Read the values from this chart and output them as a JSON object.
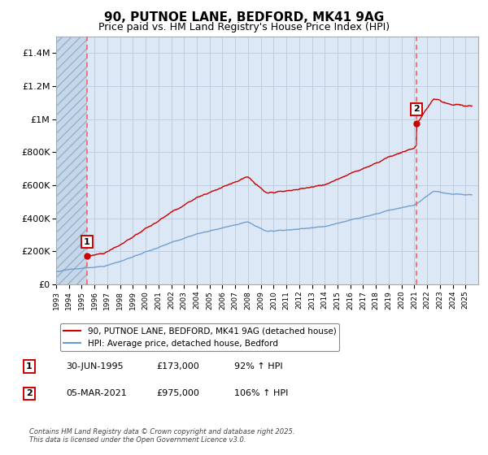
{
  "title": "90, PUTNOE LANE, BEDFORD, MK41 9AG",
  "subtitle": "Price paid vs. HM Land Registry's House Price Index (HPI)",
  "ylim": [
    0,
    1500000
  ],
  "xlim_start": 1993.0,
  "xlim_end": 2026.0,
  "yticks": [
    0,
    200000,
    400000,
    600000,
    800000,
    1000000,
    1200000,
    1400000
  ],
  "ytick_labels": [
    "£0",
    "£200K",
    "£400K",
    "£600K",
    "£800K",
    "£1M",
    "£1.2M",
    "£1.4M"
  ],
  "xticks": [
    1993,
    1994,
    1995,
    1996,
    1997,
    1998,
    1999,
    2000,
    2001,
    2002,
    2003,
    2004,
    2005,
    2006,
    2007,
    2008,
    2009,
    2010,
    2011,
    2012,
    2013,
    2014,
    2015,
    2016,
    2017,
    2018,
    2019,
    2020,
    2021,
    2022,
    2023,
    2024,
    2025
  ],
  "hatch_end": 1995.42,
  "marker1_x": 1995.42,
  "marker1_y": 173000,
  "marker1_label": "1",
  "marker1_date": "30-JUN-1995",
  "marker1_price": "£173,000",
  "marker1_hpi": "92% ↑ HPI",
  "marker2_x": 2021.17,
  "marker2_y": 975000,
  "marker2_label": "2",
  "marker2_date": "05-MAR-2021",
  "marker2_price": "£975,000",
  "marker2_hpi": "106% ↑ HPI",
  "line1_color": "#cc0000",
  "line2_color": "#6699cc",
  "background_color": "#dce8f5",
  "grid_color": "#c0cfe0",
  "title_fontsize": 11,
  "subtitle_fontsize": 9,
  "legend_line1": "90, PUTNOE LANE, BEDFORD, MK41 9AG (detached house)",
  "legend_line2": "HPI: Average price, detached house, Bedford",
  "footer": "Contains HM Land Registry data © Crown copyright and database right 2025.\nThis data is licensed under the Open Government Licence v3.0."
}
